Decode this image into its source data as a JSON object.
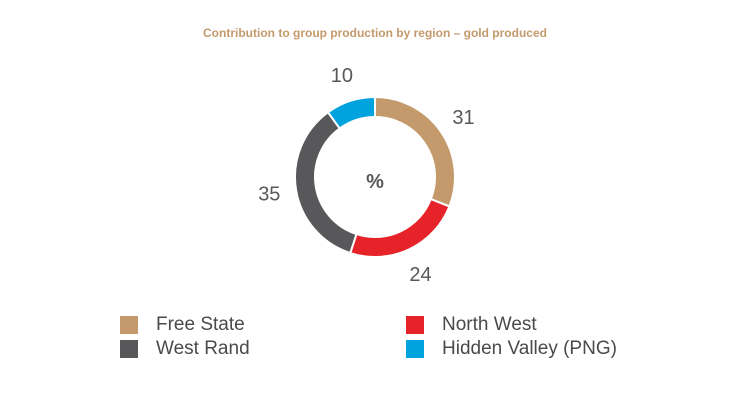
{
  "chart_data": {
    "type": "pie",
    "title": "Contribution to group production by region – gold produced",
    "center_label": "%",
    "categories": [
      "Free State",
      "North West",
      "West Rand",
      "Hidden Valley (PNG)"
    ],
    "values": [
      31,
      24,
      35,
      10
    ],
    "colors": [
      "#c49a6c",
      "#e52329",
      "#58585a",
      "#00a3dd"
    ],
    "donut": true,
    "legend_position": "bottom"
  },
  "legend": [
    {
      "label": "Free State",
      "color": "#c49a6c"
    },
    {
      "label": "West Rand",
      "color": "#58585a"
    },
    {
      "label": "North West",
      "color": "#e52329"
    },
    {
      "label": "Hidden Valley (PNG)",
      "color": "#00a3dd"
    }
  ]
}
